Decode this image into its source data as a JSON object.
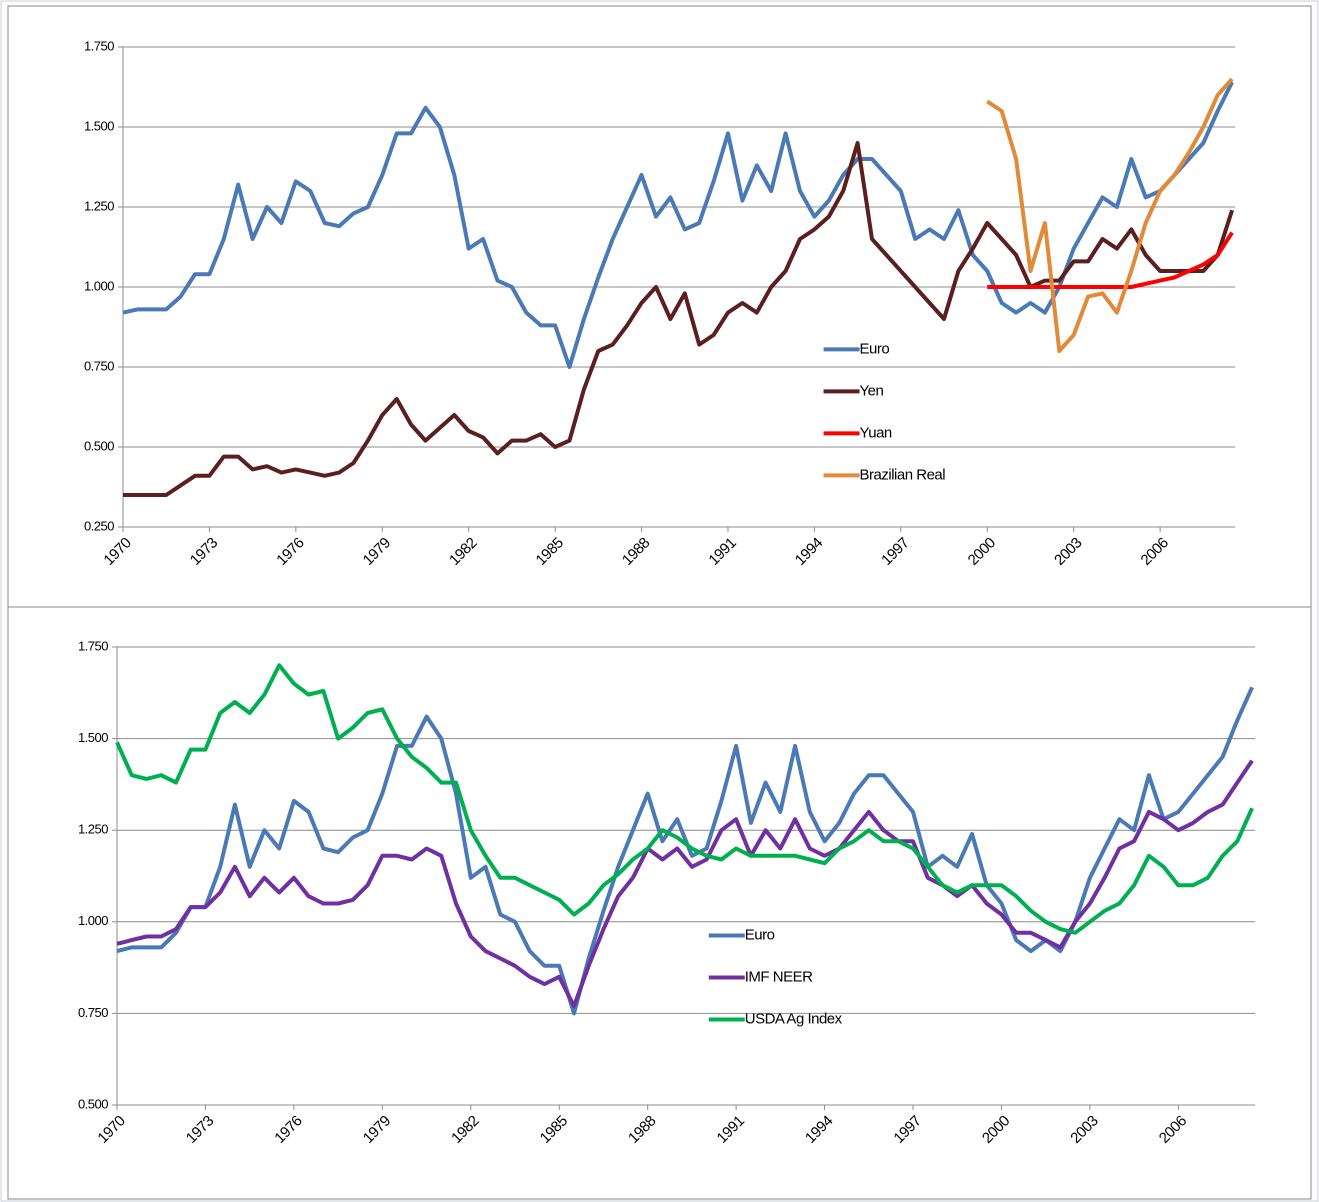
{
  "chart_data": [
    {
      "type": "line",
      "x": [
        1970,
        1970.5,
        1971,
        1971.5,
        1972,
        1972.5,
        1973,
        1973.5,
        1974,
        1974.5,
        1975,
        1975.5,
        1976,
        1976.5,
        1977,
        1977.5,
        1978,
        1978.5,
        1979,
        1979.5,
        1980,
        1980.5,
        1981,
        1981.5,
        1982,
        1982.5,
        1983,
        1983.5,
        1984,
        1984.5,
        1985,
        1985.5,
        1986,
        1986.5,
        1987,
        1987.5,
        1988,
        1988.5,
        1989,
        1989.5,
        1990,
        1990.5,
        1991,
        1991.5,
        1992,
        1992.5,
        1993,
        1993.5,
        1994,
        1994.5,
        1995,
        1995.5,
        1996,
        1996.5,
        1997,
        1997.5,
        1998,
        1998.5,
        1999,
        1999.5,
        2000,
        2000.5,
        2001,
        2001.5,
        2002,
        2002.5,
        2003,
        2003.5,
        2004,
        2004.5,
        2005,
        2005.5,
        2006,
        2006.5,
        2007,
        2007.5,
        2008,
        2008.5
      ],
      "series": [
        {
          "name": "Euro",
          "color": "#4a7ab5",
          "values": [
            0.92,
            0.93,
            0.93,
            0.93,
            0.97,
            1.04,
            1.04,
            1.15,
            1.32,
            1.15,
            1.25,
            1.2,
            1.33,
            1.3,
            1.2,
            1.19,
            1.23,
            1.25,
            1.35,
            1.48,
            1.48,
            1.56,
            1.5,
            1.35,
            1.12,
            1.15,
            1.02,
            1.0,
            0.92,
            0.88,
            0.88,
            0.75,
            0.9,
            1.03,
            1.15,
            1.25,
            1.35,
            1.22,
            1.28,
            1.18,
            1.2,
            1.33,
            1.48,
            1.27,
            1.38,
            1.3,
            1.48,
            1.3,
            1.22,
            1.27,
            1.35,
            1.4,
            1.4,
            1.35,
            1.3,
            1.15,
            1.18,
            1.15,
            1.24,
            1.1,
            1.05,
            0.95,
            0.92,
            0.95,
            0.92,
            1.0,
            1.12,
            1.2,
            1.28,
            1.25,
            1.4,
            1.28,
            1.3,
            1.35,
            1.4,
            1.45,
            1.55,
            1.64
          ]
        },
        {
          "name": "Yen",
          "color": "#5c1f1f",
          "values": [
            0.35,
            0.35,
            0.35,
            0.35,
            0.38,
            0.41,
            0.41,
            0.47,
            0.47,
            0.43,
            0.44,
            0.42,
            0.43,
            0.42,
            0.41,
            0.42,
            0.45,
            0.52,
            0.6,
            0.65,
            0.57,
            0.52,
            0.56,
            0.6,
            0.55,
            0.53,
            0.48,
            0.52,
            0.52,
            0.54,
            0.5,
            0.52,
            0.68,
            0.8,
            0.82,
            0.88,
            0.95,
            1.0,
            0.9,
            0.98,
            0.82,
            0.85,
            0.92,
            0.95,
            0.92,
            1.0,
            1.05,
            1.15,
            1.18,
            1.22,
            1.3,
            1.45,
            1.15,
            1.1,
            1.05,
            1.0,
            0.95,
            0.9,
            1.05,
            1.12,
            1.2,
            1.15,
            1.1,
            1.0,
            1.02,
            1.02,
            1.08,
            1.08,
            1.15,
            1.12,
            1.18,
            1.1,
            1.05,
            1.05,
            1.05,
            1.05,
            1.1,
            1.24
          ]
        },
        {
          "name": "Yuan",
          "color": "#ff0000",
          "values": [
            null,
            null,
            null,
            null,
            null,
            null,
            null,
            null,
            null,
            null,
            null,
            null,
            null,
            null,
            null,
            null,
            null,
            null,
            null,
            null,
            null,
            null,
            null,
            null,
            null,
            null,
            null,
            null,
            null,
            null,
            null,
            null,
            null,
            null,
            null,
            null,
            null,
            null,
            null,
            null,
            null,
            null,
            null,
            null,
            null,
            null,
            null,
            null,
            null,
            null,
            null,
            null,
            null,
            null,
            null,
            null,
            null,
            null,
            null,
            null,
            1.0,
            1.0,
            1.0,
            1.0,
            1.0,
            1.0,
            1.0,
            1.0,
            1.0,
            1.0,
            1.0,
            1.01,
            1.02,
            1.03,
            1.05,
            1.07,
            1.1,
            1.17
          ]
        },
        {
          "name": "Brazilian Real",
          "color": "#e08a3a",
          "values": [
            null,
            null,
            null,
            null,
            null,
            null,
            null,
            null,
            null,
            null,
            null,
            null,
            null,
            null,
            null,
            null,
            null,
            null,
            null,
            null,
            null,
            null,
            null,
            null,
            null,
            null,
            null,
            null,
            null,
            null,
            null,
            null,
            null,
            null,
            null,
            null,
            null,
            null,
            null,
            null,
            null,
            null,
            null,
            null,
            null,
            null,
            null,
            null,
            null,
            null,
            null,
            null,
            null,
            null,
            null,
            null,
            null,
            null,
            null,
            null,
            1.58,
            1.55,
            1.4,
            1.05,
            1.2,
            0.8,
            0.85,
            0.97,
            0.98,
            0.92,
            1.05,
            1.2,
            1.3,
            1.35,
            1.42,
            1.5,
            1.6,
            1.65
          ]
        }
      ],
      "xlim": [
        1970,
        2008.6
      ],
      "xticks": [
        1970,
        1973,
        1976,
        1979,
        1982,
        1985,
        1988,
        1991,
        1994,
        1997,
        2000,
        2003,
        2006
      ],
      "ylim": [
        0.25,
        1.75
      ],
      "yticks": [
        {
          "value": 0.25,
          "label": "0.250"
        },
        {
          "value": 0.5,
          "label": "0.500"
        },
        {
          "value": 0.75,
          "label": "0.750"
        },
        {
          "value": 1.0,
          "label": "1.000"
        },
        {
          "value": 1.25,
          "label": "1.250"
        },
        {
          "value": 1.5,
          "label": "1.500"
        },
        {
          "value": 1.75,
          "label": "1.750"
        }
      ],
      "grid": true,
      "legend": "center-right"
    },
    {
      "type": "line",
      "x": [
        1970,
        1970.5,
        1971,
        1971.5,
        1972,
        1972.5,
        1973,
        1973.5,
        1974,
        1974.5,
        1975,
        1975.5,
        1976,
        1976.5,
        1977,
        1977.5,
        1978,
        1978.5,
        1979,
        1979.5,
        1980,
        1980.5,
        1981,
        1981.5,
        1982,
        1982.5,
        1983,
        1983.5,
        1984,
        1984.5,
        1985,
        1985.5,
        1986,
        1986.5,
        1987,
        1987.5,
        1988,
        1988.5,
        1989,
        1989.5,
        1990,
        1990.5,
        1991,
        1991.5,
        1992,
        1992.5,
        1993,
        1993.5,
        1994,
        1994.5,
        1995,
        1995.5,
        1996,
        1996.5,
        1997,
        1997.5,
        1998,
        1998.5,
        1999,
        1999.5,
        2000,
        2000.5,
        2001,
        2001.5,
        2002,
        2002.5,
        2003,
        2003.5,
        2004,
        2004.5,
        2005,
        2005.5,
        2006,
        2006.5,
        2007,
        2007.5,
        2008,
        2008.5
      ],
      "series": [
        {
          "name": "Euro",
          "color": "#4a7ab5",
          "values": [
            0.92,
            0.93,
            0.93,
            0.93,
            0.97,
            1.04,
            1.04,
            1.15,
            1.32,
            1.15,
            1.25,
            1.2,
            1.33,
            1.3,
            1.2,
            1.19,
            1.23,
            1.25,
            1.35,
            1.48,
            1.48,
            1.56,
            1.5,
            1.35,
            1.12,
            1.15,
            1.02,
            1.0,
            0.92,
            0.88,
            0.88,
            0.75,
            0.9,
            1.03,
            1.15,
            1.25,
            1.35,
            1.22,
            1.28,
            1.18,
            1.2,
            1.33,
            1.48,
            1.27,
            1.38,
            1.3,
            1.48,
            1.3,
            1.22,
            1.27,
            1.35,
            1.4,
            1.4,
            1.35,
            1.3,
            1.15,
            1.18,
            1.15,
            1.24,
            1.1,
            1.05,
            0.95,
            0.92,
            0.95,
            0.92,
            1.0,
            1.12,
            1.2,
            1.28,
            1.25,
            1.4,
            1.28,
            1.3,
            1.35,
            1.4,
            1.45,
            1.55,
            1.64
          ]
        },
        {
          "name": "IMF NEER",
          "color": "#7030a0",
          "values": [
            0.94,
            0.95,
            0.96,
            0.96,
            0.98,
            1.04,
            1.04,
            1.08,
            1.15,
            1.07,
            1.12,
            1.08,
            1.12,
            1.07,
            1.05,
            1.05,
            1.06,
            1.1,
            1.18,
            1.18,
            1.17,
            1.2,
            1.18,
            1.05,
            0.96,
            0.92,
            0.9,
            0.88,
            0.85,
            0.83,
            0.85,
            0.77,
            0.88,
            0.98,
            1.07,
            1.12,
            1.2,
            1.17,
            1.2,
            1.15,
            1.17,
            1.25,
            1.28,
            1.18,
            1.25,
            1.2,
            1.28,
            1.2,
            1.18,
            1.2,
            1.25,
            1.3,
            1.25,
            1.22,
            1.22,
            1.12,
            1.1,
            1.07,
            1.1,
            1.05,
            1.02,
            0.97,
            0.97,
            0.95,
            0.93,
            1.0,
            1.05,
            1.12,
            1.2,
            1.22,
            1.3,
            1.28,
            1.25,
            1.27,
            1.3,
            1.32,
            1.38,
            1.44
          ]
        },
        {
          "name": "USDA Ag Index",
          "color": "#00b050",
          "values": [
            1.49,
            1.4,
            1.39,
            1.4,
            1.38,
            1.47,
            1.47,
            1.57,
            1.6,
            1.57,
            1.62,
            1.7,
            1.65,
            1.62,
            1.63,
            1.5,
            1.53,
            1.57,
            1.58,
            1.5,
            1.45,
            1.42,
            1.38,
            1.38,
            1.25,
            1.18,
            1.12,
            1.12,
            1.1,
            1.08,
            1.06,
            1.02,
            1.05,
            1.1,
            1.13,
            1.17,
            1.2,
            1.25,
            1.23,
            1.2,
            1.18,
            1.17,
            1.2,
            1.18,
            1.18,
            1.18,
            1.18,
            1.17,
            1.16,
            1.2,
            1.22,
            1.25,
            1.22,
            1.22,
            1.2,
            1.15,
            1.1,
            1.08,
            1.1,
            1.1,
            1.1,
            1.07,
            1.03,
            1.0,
            0.98,
            0.97,
            1.0,
            1.03,
            1.05,
            1.1,
            1.18,
            1.15,
            1.1,
            1.1,
            1.12,
            1.18,
            1.22,
            1.31
          ]
        }
      ],
      "xlim": [
        1970,
        2008.6
      ],
      "xticks": [
        1970,
        1973,
        1976,
        1979,
        1982,
        1985,
        1988,
        1991,
        1994,
        1997,
        2000,
        2003,
        2006
      ],
      "ylim": [
        0.5,
        1.75
      ],
      "yticks": [
        {
          "value": 0.5,
          "label": "0.500"
        },
        {
          "value": 0.75,
          "label": "0.750"
        },
        {
          "value": 1.0,
          "label": "1.000"
        },
        {
          "value": 1.25,
          "label": "1.250"
        },
        {
          "value": 1.5,
          "label": "1.500"
        },
        {
          "value": 1.75,
          "label": "1.750"
        }
      ],
      "grid": true,
      "legend": "center"
    }
  ]
}
